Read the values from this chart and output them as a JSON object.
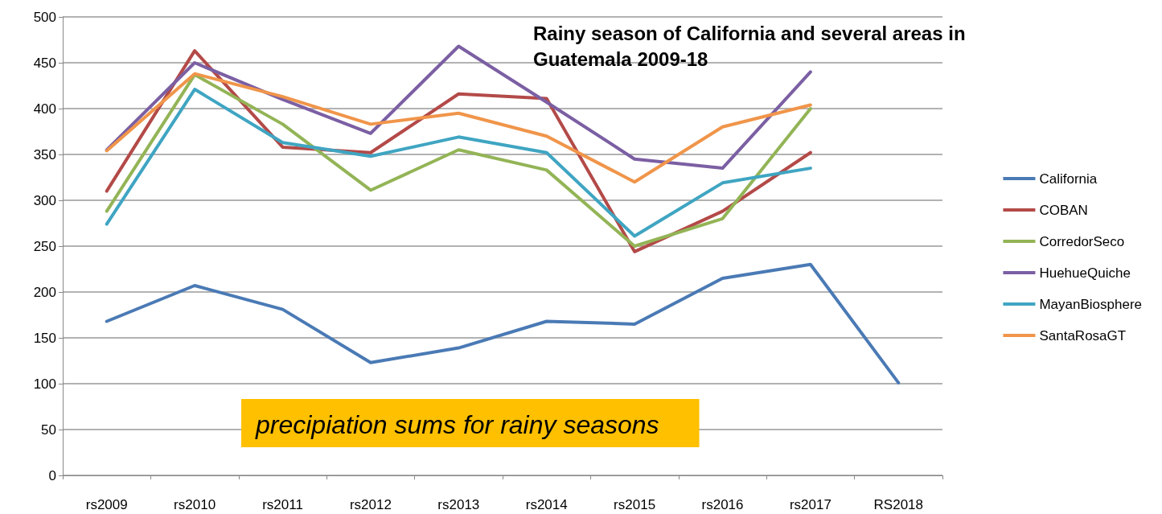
{
  "chart_data": {
    "type": "line",
    "title": "Rainy season of California and several areas in Guatemala 2009-18",
    "categories": [
      "rs2009",
      "rs2010",
      "rs2011",
      "rs2012",
      "rs2013",
      "rs2014",
      "rs2015",
      "rs2016",
      "rs2017",
      "RS2018"
    ],
    "series": [
      {
        "name": "California",
        "color": "#4a7ab5",
        "values": [
          168,
          207,
          181,
          123,
          139,
          168,
          165,
          215,
          230,
          101
        ]
      },
      {
        "name": "COBAN",
        "color": "#b34a48",
        "values": [
          310,
          463,
          358,
          352,
          416,
          411,
          244,
          288,
          352,
          null
        ]
      },
      {
        "name": "CorredorSeco",
        "color": "#93b456",
        "values": [
          288,
          437,
          383,
          311,
          355,
          333,
          250,
          280,
          400,
          null
        ]
      },
      {
        "name": "HuehueQuiche",
        "color": "#7b5fa3",
        "values": [
          355,
          450,
          410,
          373,
          468,
          407,
          345,
          335,
          440,
          null
        ]
      },
      {
        "name": "MayanBiosphere",
        "color": "#3fa5c2",
        "values": [
          274,
          421,
          363,
          348,
          369,
          352,
          261,
          319,
          335,
          null
        ]
      },
      {
        "name": "SantaRosaGT",
        "color": "#f0954a",
        "values": [
          354,
          438,
          413,
          383,
          395,
          370,
          320,
          380,
          404,
          null
        ]
      }
    ],
    "ylim": [
      0,
      500
    ],
    "yticks": [
      0,
      50,
      100,
      150,
      200,
      250,
      300,
      350,
      400,
      450,
      500
    ],
    "grid": "y",
    "legend": "right",
    "marker": "none",
    "line_style": "solid",
    "annotations": [
      "precipiation sums for rainy seasons"
    ]
  }
}
